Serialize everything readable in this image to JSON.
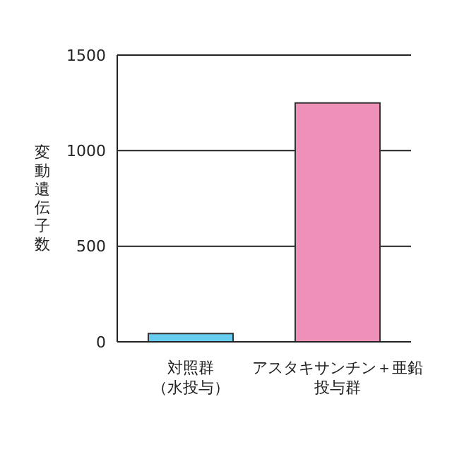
{
  "chart_data": {
    "type": "bar",
    "ylabel": "変動遺伝子数",
    "categories": [
      "対照群（水投与）",
      "アスタキサンチン＋亜鉛投与群"
    ],
    "values": [
      43,
      1250
    ],
    "colors": [
      "#66ccf0",
      "#ee90b8"
    ],
    "ylim": [
      0,
      1500
    ],
    "yticks": [
      0,
      500,
      1000,
      1500
    ],
    "grid": "y"
  }
}
